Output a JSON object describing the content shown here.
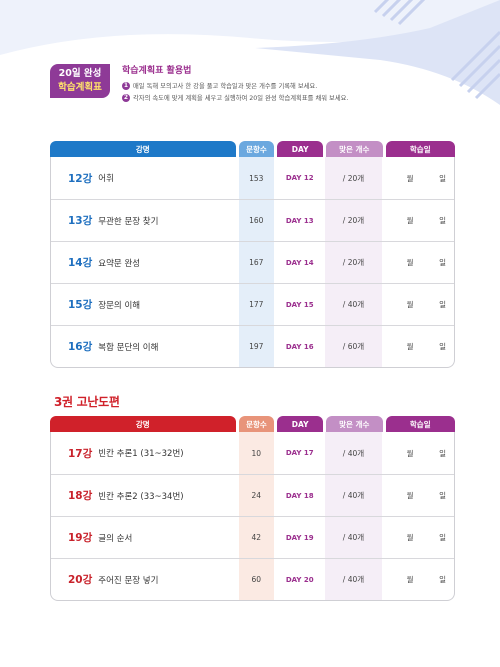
{
  "badge": {
    "line1": "20일 완성",
    "line2": "학습계획표"
  },
  "guide": {
    "title": "학습계획표 활용법",
    "items": [
      {
        "num": "1",
        "text": "매일 독해 모의고사 한 강을 풀고 학습일과 맞은 개수를 기록해 보세요."
      },
      {
        "num": "2",
        "text": "각자의 속도에 맞게 계획을 세우고 실행하여 20일 완성 학습계획표를 채워 보세요."
      }
    ]
  },
  "headers": {
    "name": "강명",
    "q": "문항수",
    "day": "DAY",
    "cnt": "맞은 개수",
    "date": "학습일"
  },
  "date_labels": {
    "month": "월",
    "day": "일"
  },
  "volume3_title": "3권 고난도편",
  "table1": [
    {
      "lec": "12강",
      "title": "어휘",
      "q": "153",
      "day": "DAY 12",
      "cnt": "/ 20개"
    },
    {
      "lec": "13강",
      "title": "무관한 문장 찾기",
      "q": "160",
      "day": "DAY 13",
      "cnt": "/ 20개"
    },
    {
      "lec": "14강",
      "title": "요약문 완성",
      "q": "167",
      "day": "DAY 14",
      "cnt": "/ 20개"
    },
    {
      "lec": "15강",
      "title": "장문의 이해",
      "q": "177",
      "day": "DAY 15",
      "cnt": "/ 40개"
    },
    {
      "lec": "16강",
      "title": "복합 문단의 이해",
      "q": "197",
      "day": "DAY 16",
      "cnt": "/ 60개"
    }
  ],
  "table2": [
    {
      "lec": "17강",
      "title": "빈칸 추론1 (31~32번)",
      "q": "10",
      "day": "DAY 17",
      "cnt": "/ 40개"
    },
    {
      "lec": "18강",
      "title": "빈칸 추론2 (33~34번)",
      "q": "24",
      "day": "DAY 18",
      "cnt": "/ 40개"
    },
    {
      "lec": "19강",
      "title": "글의 순서",
      "q": "42",
      "day": "DAY 19",
      "cnt": "/ 40개"
    },
    {
      "lec": "20강",
      "title": "주어진 문장 넣기",
      "q": "60",
      "day": "DAY 20",
      "cnt": "/ 40개"
    }
  ]
}
